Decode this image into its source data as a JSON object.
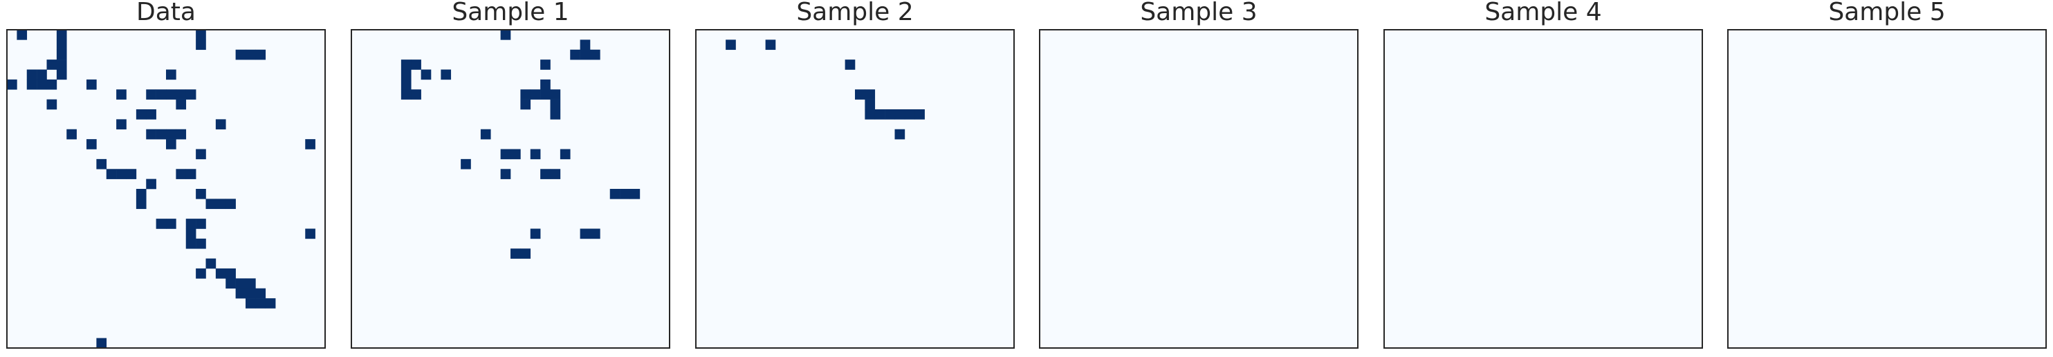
{
  "chart_data": [
    {
      "type": "heatmap",
      "title": "Data",
      "grid_size": 32,
      "colormap": [
        "#f7fbff",
        "#08306b"
      ],
      "rows": [
        "01000100000000000001000000000000",
        "00000100000000000001000000000000",
        "00000100000000000000000111000000",
        "00001100000000000000000000000000",
        "00110100000000001000000000000000",
        "10111000100000000000000000000000",
        "00000000000100111110000000000000",
        "00001000000000000100000000000000",
        "00000000000001100000000000000000",
        "00000000000100000000010000000000",
        "00000010000000111100000000000000",
        "00000000100000001000000000000010",
        "00000000000000000001000000000000",
        "00000000010000000000000000000000",
        "00000000001110000110000000000000",
        "00000000000000100000000000000000",
        "00000000000001000001000000000000",
        "00000000000001000000111000000000",
        "00000000000000000000000000000000",
        "00000000000000011011000000000000",
        "00000000000000000010000000000010",
        "00000000000000000011000000000000",
        "00000000000000000000000000000000",
        "00000000000000000000100000000000",
        "00000000000000000001011000000000",
        "00000000000000000000001110000000",
        "00000000000000000000000111000000",
        "00000000000000000000000011100000",
        "00000000000000000000000000000000",
        "00000000000000000000000000000000",
        "00000000000000000000000000000000",
        "00000000010000000000000000000000"
      ]
    },
    {
      "type": "heatmap",
      "title": "Sample 1",
      "grid_size": 32,
      "colormap": [
        "#f7fbff",
        "#08306b"
      ],
      "rows": [
        "00000000000000010000000000000000",
        "00000000000000000000000100000000",
        "00000000000000000000001110000000",
        "00000110000000000001000000000000",
        "00000101010000000000000000000000",
        "00000100000000000001000000000000",
        "00000110000000000111100000000000",
        "00000000000000000100100000000000",
        "00000000000000000000100000000000",
        "00000000000000000000000000000000",
        "00000000000001000000000000000000",
        "00000000000000000000000000000000",
        "00000000000000011010010000000000",
        "00000000000100000000000000000000",
        "00000000000000010001100000000000",
        "00000000000000000000000000000000",
        "00000000000000000000000000111000",
        "00000000000000000000000000000000",
        "00000000000000000000000000000000",
        "00000000000000000000000000000000",
        "00000000000000000010000110000000",
        "00000000000000000000000000000000",
        "00000000000000001100000000000000",
        "00000000000000000000000000000000",
        "00000000000000000000000000000000",
        "00000000000000000000000000000000",
        "00000000000000000000000000000000",
        "00000000000000000000000000000000",
        "00000000000000000000000000000000",
        "00000000000000000000000000000000",
        "00000000000000000000000000000000",
        "00000000000000000000000000000000"
      ]
    },
    {
      "type": "heatmap",
      "title": "Sample 2",
      "grid_size": 32,
      "colormap": [
        "#f7fbff",
        "#08306b"
      ],
      "rows": [
        "00000000000000000000000000000000",
        "00010001000000000000000000000000",
        "00000000000000000000000000000000",
        "00000000000000010000000000000000",
        "00000000000000000000000000000000",
        "00000000000000000000000000000000",
        "00000000000000001100000000000000",
        "00000000000000000100000000000000",
        "00000000000000000111111000000000",
        "00000000000000000000000000000000",
        "00000000000000000000100000000000",
        "00000000000000000000000000000000",
        "00000000000000000000000000000000",
        "00000000000000000000000000000000",
        "00000000000000000000000000000000",
        "00000000000000000000000000000000",
        "00000000000000000000000000000000",
        "00000000000000000000000000000000",
        "00000000000000000000000000000000",
        "00000000000000000000000000000000",
        "00000000000000000000000000000000",
        "00000000000000000000000000000000",
        "00000000000000000000000000000000",
        "00000000000000000000000000000000",
        "00000000000000000000000000000000",
        "00000000000000000000000000000000",
        "00000000000000000000000000000000",
        "00000000000000000000000000000000",
        "00000000000000000000000000000000",
        "00000000000000000000000000000000",
        "00000000000000000000000000000000",
        "00000000000000000000000000000000"
      ]
    },
    {
      "type": "heatmap",
      "title": "Sample 3",
      "grid_size": 32,
      "colormap": [
        "#f7fbff",
        "#08306b"
      ],
      "rows": [
        "00000000000000000000000000000000",
        "00000000000000000000000000000000",
        "00000000000000000000000000000000",
        "00000000000000000000000000000000",
        "00000000000000000000000000000000",
        "00000000000000000000000000000000",
        "00000000000000000000000000000000",
        "00000000000000000000000000000000",
        "00000000000000000000000000000000",
        "00000000000000000000000000000000",
        "00000000000000000000000000000000",
        "00000000000000000000000000000000",
        "00000000000000000000000000000000",
        "00000000000000000000000000000000",
        "00000000000000000000000000000000",
        "00000000000000000000000000000000",
        "00000000000000000000000000000000",
        "00000000000000000000000000000000",
        "00000000000000000000000000000000",
        "00000000000000000000000000000000",
        "00000000000000000000000000000000",
        "00000000000000000000000000000000",
        "00000000000000000000000000000000",
        "00000000000000000000000000000000",
        "00000000000000000000000000000000",
        "00000000000000000000000000000000",
        "00000000000000000000000000000000",
        "00000000000000000000000000000000",
        "00000000000000000000000000000000",
        "00000000000000000000000000000000",
        "00000000000000000000000000000000",
        "00000000000000000000000000000000"
      ]
    },
    {
      "type": "heatmap",
      "title": "Sample 4",
      "grid_size": 32,
      "colormap": [
        "#f7fbff",
        "#08306b"
      ],
      "rows": [
        "00000000000000000000000000000000",
        "00000000000000000000000000000000",
        "00000000000000000000000000000000",
        "00000000000000000000000000000000",
        "00000000000000000000000000000000",
        "00000000000000000000000000000000",
        "00000000000000000000000000000000",
        "00000000000000000000000000000000",
        "00000000000000000000000000000000",
        "00000000000000000000000000000000",
        "00000000000000000000000000000000",
        "00000000000000000000000000000000",
        "00000000000000000000000000000000",
        "00000000000000000000000000000000",
        "00000000000000000000000000000000",
        "00000000000000000000000000000000",
        "00000000000000000000000000000000",
        "00000000000000000000000000000000",
        "00000000000000000000000000000000",
        "00000000000000000000000000000000",
        "00000000000000000000000000000000",
        "00000000000000000000000000000000",
        "00000000000000000000000000000000",
        "00000000000000000000000000000000",
        "00000000000000000000000000000000",
        "00000000000000000000000000000000",
        "00000000000000000000000000000000",
        "00000000000000000000000000000000",
        "00000000000000000000000000000000",
        "00000000000000000000000000000000",
        "00000000000000000000000000000000",
        "00000000000000000000000000000000"
      ]
    },
    {
      "type": "heatmap",
      "title": "Sample 5",
      "grid_size": 32,
      "colormap": [
        "#f7fbff",
        "#08306b"
      ],
      "rows": [
        "00000000000000000000000000000000",
        "00000000000000000000000000000000",
        "00000000000000000000000000000000",
        "00000000000000000000000000000000",
        "00000000000000000000000000000000",
        "00000000000000000000000000000000",
        "00000000000000000000000000000000",
        "00000000000000000000000000000000",
        "00000000000000000000000000000000",
        "00000000000000000000000000000000",
        "00000000000000000000000000000000",
        "00000000000000000000000000000000",
        "00000000000000000000000000000000",
        "00000000000000000000000000000000",
        "00000000000000000000000000000000",
        "00000000000000000000000000000000",
        "00000000000000000000000000000000",
        "00000000000000000000000000000000",
        "00000000000000000000000000000000",
        "00000000000000000000000000000000",
        "00000000000000000000000000000000",
        "00000000000000000000000000000000",
        "00000000000000000000000000000000",
        "00000000000000000000000000000000",
        "00000000000000000000000000000000",
        "00000000000000000000000000000000",
        "00000000000000000000000000000000",
        "00000000000000000000000000000000",
        "00000000000000000000000000000000",
        "00000000000000000000000000000000",
        "00000000000000000000000000000000",
        "00000000000000000000000000000000"
      ]
    }
  ]
}
